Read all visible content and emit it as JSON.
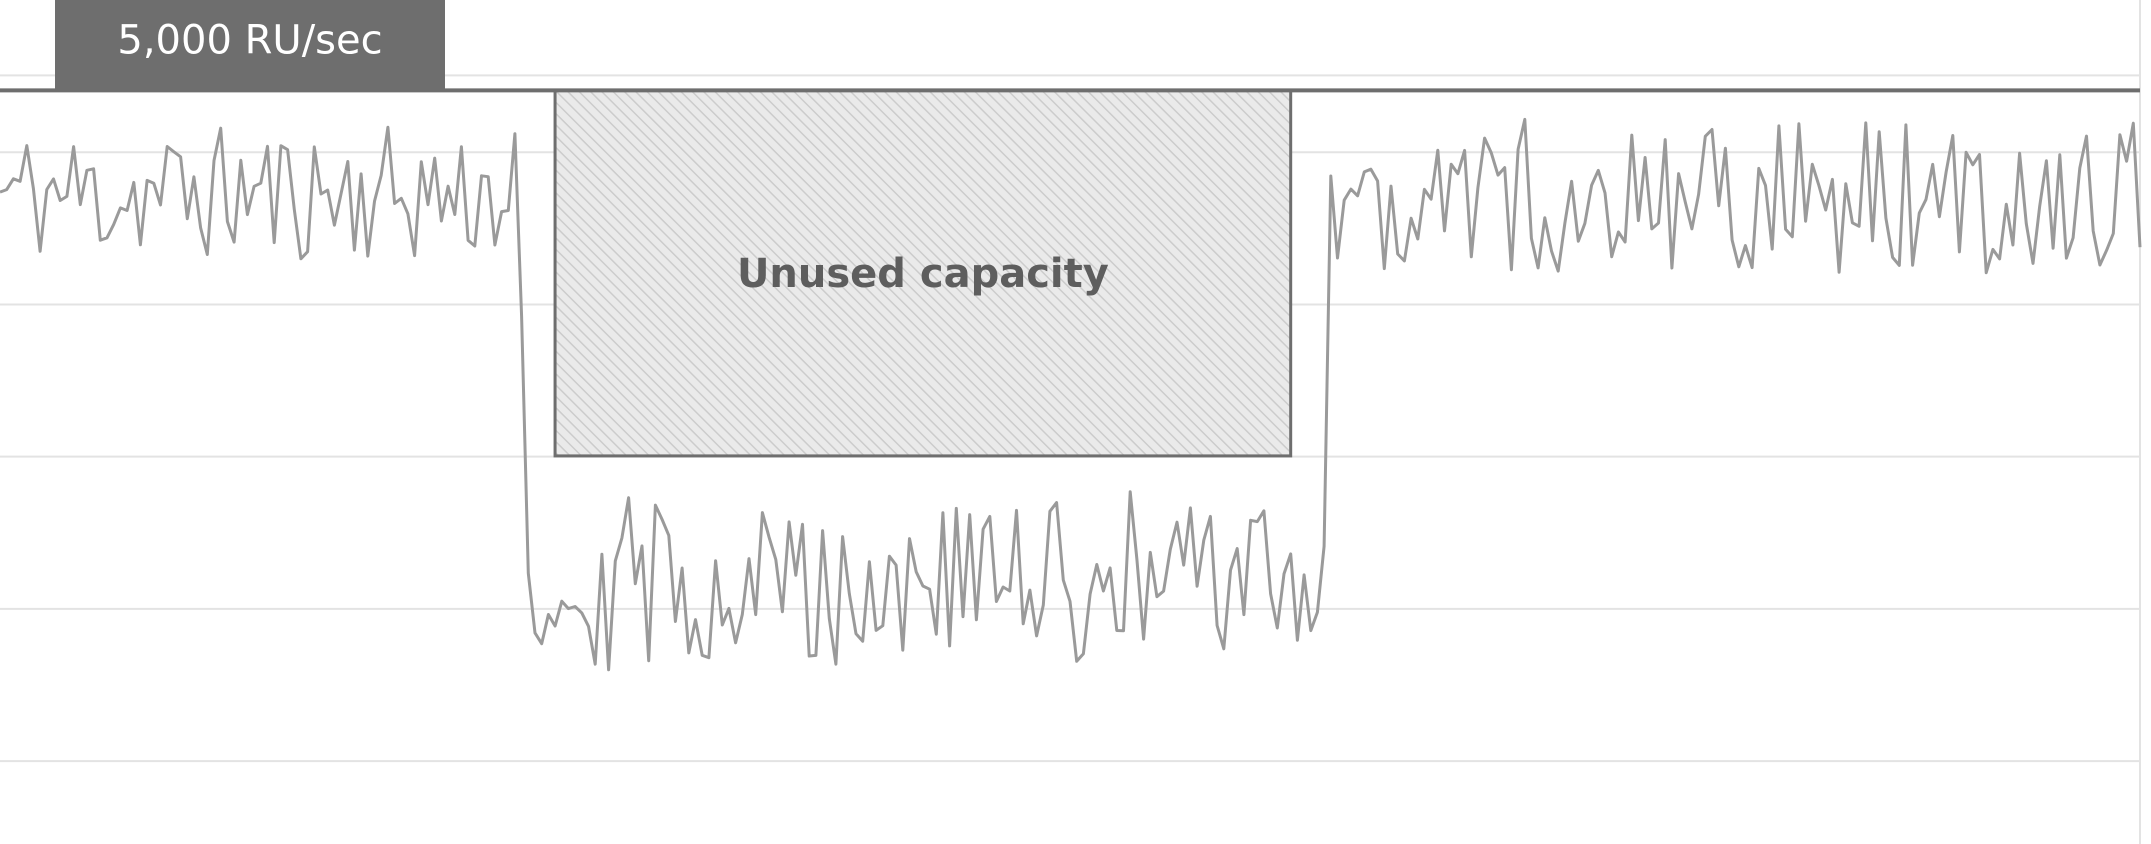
{
  "chart_data": {
    "type": "line",
    "title": "",
    "xlabel": "",
    "ylabel": "",
    "xlim": [
      0,
      320
    ],
    "ylim": [
      0,
      5600
    ],
    "grid": true,
    "gridlines_y": [
      550,
      1560,
      2570,
      3580,
      4590,
      5100
    ],
    "colors": {
      "line": "#9a9a9a",
      "threshold": "#6e6e6e",
      "grid": "#e3e3e3",
      "badge": "#6e6e6e",
      "box_border": "#6e6e6e",
      "box_fill": "#eaeaea",
      "box_hatch": "#cccccc",
      "unused_text": "#5e5e5e"
    },
    "threshold": {
      "value": 5000,
      "label": "5,000 RU/sec"
    },
    "unused_capacity": {
      "label": "Unused capacity",
      "x_start": 83,
      "x_end": 193,
      "y_top": 5000,
      "y_bottom": 2575
    },
    "segments": [
      {
        "name": "high-before",
        "x_start": 0,
        "x_end": 77,
        "y_min": 3860,
        "y_max": 4770,
        "seed": 11
      },
      {
        "name": "drop",
        "x_start": 77,
        "x_end": 79,
        "y_min": 1700,
        "y_max": 4200,
        "seed": 3
      },
      {
        "name": "low",
        "x_start": 79,
        "x_end": 198,
        "y_min": 1150,
        "y_max": 2340,
        "seed": 29
      },
      {
        "name": "high-after",
        "x_start": 198,
        "x_end": 320,
        "y_min": 3790,
        "y_max": 4810,
        "seed": 47
      }
    ]
  }
}
